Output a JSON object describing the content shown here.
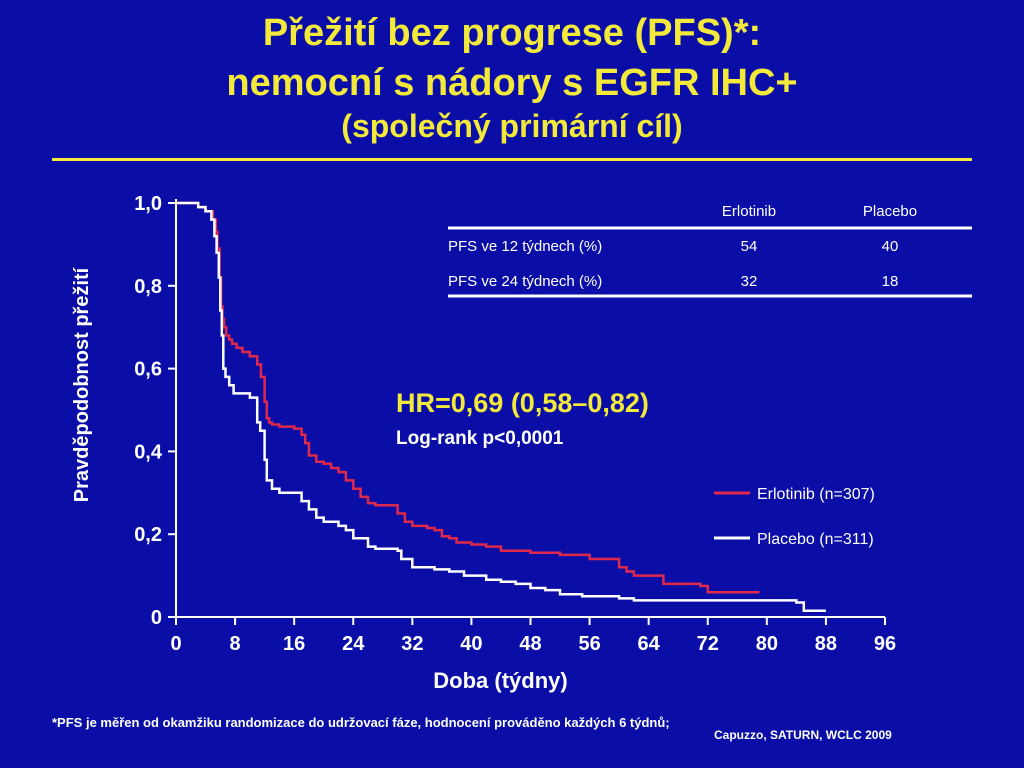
{
  "title": {
    "line1": "Přežití bez progrese (PFS)*:",
    "line2": "nemocní s nádory s EGFR IHC+",
    "line3": "(společný primární cíl)"
  },
  "table": {
    "headers": [
      "",
      "Erlotinib",
      "Placebo"
    ],
    "rows": [
      [
        "PFS ve 12 týdnech (%)",
        "54",
        "40"
      ],
      [
        "PFS ve 24 týdnech (%)",
        "32",
        "18"
      ]
    ]
  },
  "hr": {
    "main": "HR=0,69 (0,58–0,82)",
    "logrank": "Log-rank p<0,0001"
  },
  "footnote": "*PFS je měřen od okamžiku randomizace do udržovací fáze, hodnocení prováděno každých 6 týdnů;",
  "citation": "Capuzzo, SATURN, WCLC 2009",
  "colors": {
    "background": "#0a0ea6",
    "title": "#f2e93a",
    "erlotinib": "#e0284a",
    "placebo": "#ffffff"
  },
  "chart_data": {
    "type": "line",
    "step": true,
    "xlabel": "Doba (týdny)",
    "ylabel": "Pravděpodobnost přežití",
    "xlim": [
      0,
      96
    ],
    "ylim": [
      0,
      1
    ],
    "xticks": [
      0,
      8,
      16,
      24,
      32,
      40,
      48,
      56,
      64,
      72,
      80,
      88,
      96
    ],
    "xtick_labels": [
      "0",
      "8",
      "16",
      "24",
      "32",
      "40",
      "48",
      "56",
      "64",
      "72",
      "80",
      "88",
      "96"
    ],
    "yticks": [
      0,
      0.2,
      0.4,
      0.6,
      0.8,
      1.0
    ],
    "ytick_labels": [
      "0",
      "0,2",
      "0,4",
      "0,6",
      "0,8",
      "1,0"
    ],
    "legend_position": "right",
    "series": [
      {
        "name": "Erlotinib (n=307)",
        "color": "#e0284a",
        "x": [
          0,
          3,
          4,
          5,
          5.4,
          5.6,
          5.9,
          6.1,
          6.3,
          6.5,
          6.8,
          7.2,
          7.6,
          8.2,
          9,
          10,
          11,
          11.5,
          12,
          12.3,
          12.6,
          13,
          14,
          16,
          17,
          17.5,
          18,
          19,
          20,
          21,
          22,
          23,
          24,
          25,
          26,
          27,
          30,
          31,
          32,
          34,
          35,
          36,
          37,
          38,
          40,
          42,
          44,
          48,
          52,
          56,
          60,
          61,
          62,
          66,
          71,
          72,
          79
        ],
        "y": [
          1.0,
          0.99,
          0.98,
          0.96,
          0.93,
          0.89,
          0.82,
          0.75,
          0.72,
          0.7,
          0.68,
          0.67,
          0.66,
          0.65,
          0.64,
          0.63,
          0.61,
          0.58,
          0.52,
          0.48,
          0.47,
          0.465,
          0.46,
          0.455,
          0.44,
          0.42,
          0.39,
          0.375,
          0.37,
          0.36,
          0.35,
          0.33,
          0.31,
          0.29,
          0.275,
          0.27,
          0.25,
          0.23,
          0.22,
          0.215,
          0.21,
          0.195,
          0.19,
          0.18,
          0.175,
          0.17,
          0.16,
          0.155,
          0.15,
          0.14,
          0.12,
          0.11,
          0.1,
          0.08,
          0.075,
          0.06,
          0.06
        ]
      },
      {
        "name": "Placebo (n=311)",
        "color": "#ffffff",
        "x": [
          0,
          3,
          4,
          4.8,
          5.2,
          5.5,
          5.8,
          6.0,
          6.2,
          6.4,
          6.7,
          7.2,
          7.8,
          10,
          11,
          11.4,
          12,
          12.3,
          13,
          14,
          17,
          18,
          19,
          20,
          22,
          23,
          24,
          26,
          27,
          30,
          30.5,
          32,
          35,
          37,
          39,
          42,
          44,
          46,
          48,
          50,
          52,
          55,
          60,
          62,
          70,
          84,
          85,
          88
        ],
        "y": [
          1.0,
          0.99,
          0.98,
          0.96,
          0.92,
          0.88,
          0.82,
          0.74,
          0.68,
          0.6,
          0.58,
          0.56,
          0.54,
          0.53,
          0.47,
          0.45,
          0.38,
          0.33,
          0.31,
          0.3,
          0.28,
          0.26,
          0.24,
          0.23,
          0.22,
          0.21,
          0.19,
          0.17,
          0.165,
          0.16,
          0.14,
          0.12,
          0.115,
          0.11,
          0.1,
          0.09,
          0.085,
          0.08,
          0.07,
          0.065,
          0.055,
          0.05,
          0.045,
          0.04,
          0.04,
          0.035,
          0.015,
          0.015
        ]
      }
    ]
  }
}
